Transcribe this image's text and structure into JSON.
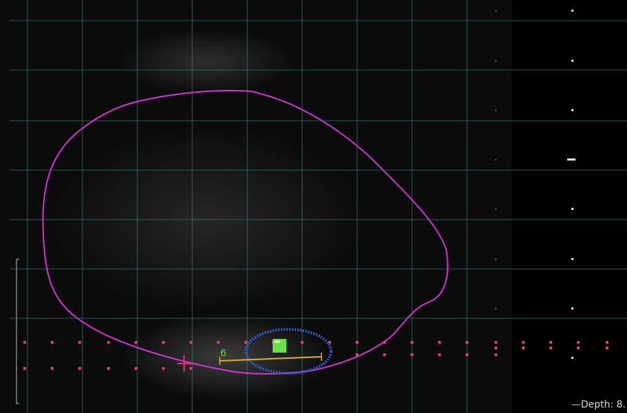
{
  "measurement": {
    "label": "6"
  },
  "depth": {
    "label": "Depth: 8.",
    "marker": "—"
  },
  "colors": {
    "grid": "#2f9c9c",
    "contour": "#d633d6",
    "region": "#2f63d6",
    "caliper": "#e6b020",
    "marker": "#6ae04a",
    "dots": "#e03a66",
    "cursor": "#e0306a"
  }
}
